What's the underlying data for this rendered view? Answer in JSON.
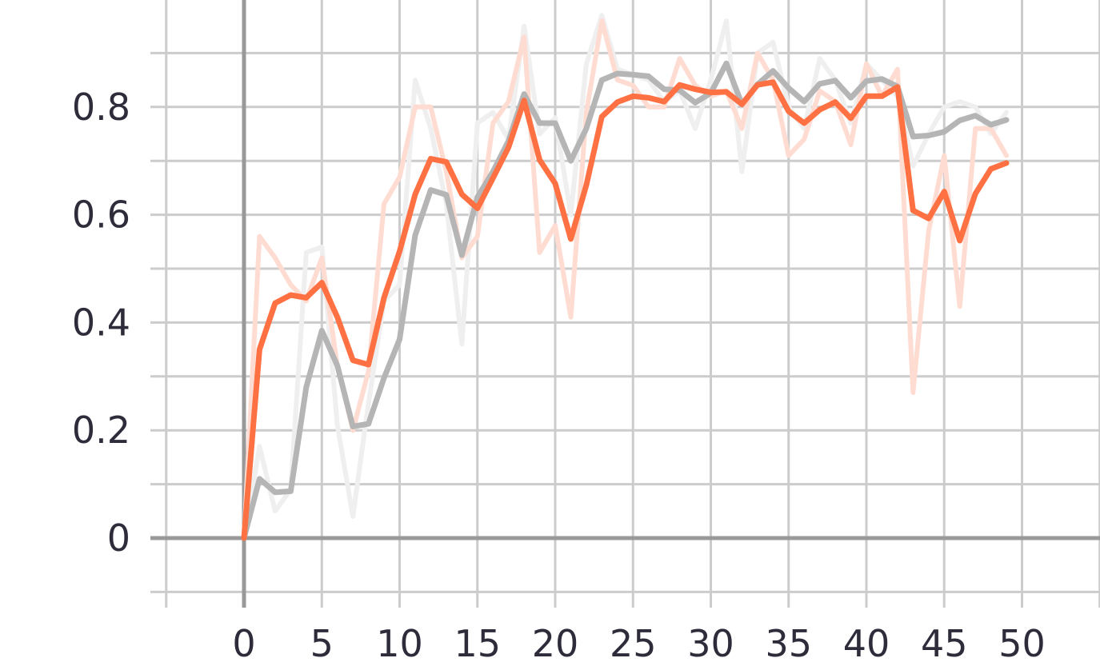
{
  "chart_data": {
    "type": "line",
    "title": "",
    "xlabel": "",
    "ylabel": "",
    "xlim": [
      -5,
      55
    ],
    "ylim": [
      -0.1,
      1.0
    ],
    "x_ticks": [
      0,
      5,
      10,
      15,
      20,
      25,
      30,
      35,
      40,
      45,
      50
    ],
    "x_tick_labels": [
      "0",
      "5",
      "10",
      "15",
      "20",
      "25",
      "30",
      "35",
      "40",
      "45",
      "50"
    ],
    "y_ticks": [
      0,
      0.2,
      0.4,
      0.6,
      0.8
    ],
    "y_tick_labels": [
      "0",
      "0.2",
      "0.4",
      "0.6",
      "0.8"
    ],
    "grid": true,
    "legend": "none",
    "colors": {
      "orange": "#ff7043",
      "orange_raw": "#ffdcd2",
      "gray": "#b5b5b5",
      "gray_raw": "#efefef",
      "grid": "#cccccc",
      "axis": "#999999"
    },
    "x": [
      0,
      1,
      2,
      3,
      4,
      5,
      6,
      7,
      8,
      9,
      10,
      11,
      12,
      13,
      14,
      15,
      16,
      17,
      18,
      19,
      20,
      21,
      22,
      23,
      24,
      25,
      26,
      27,
      28,
      29,
      30,
      31,
      32,
      33,
      34,
      35,
      36,
      37,
      38,
      39,
      40,
      41,
      42,
      43,
      44,
      45,
      46,
      47,
      48,
      49
    ],
    "series": [
      {
        "style": "raw",
        "color_key": "gray_raw",
        "values": [
          0,
          0.17,
          0.05,
          0.09,
          0.53,
          0.54,
          0.21,
          0.04,
          0.25,
          0.44,
          0.47,
          0.85,
          0.76,
          0.62,
          0.36,
          0.77,
          0.79,
          0.74,
          0.95,
          0.75,
          0.78,
          0.6,
          0.88,
          0.97,
          0.87,
          0.86,
          0.85,
          0.81,
          0.83,
          0.76,
          0.85,
          0.96,
          0.68,
          0.9,
          0.92,
          0.8,
          0.76,
          0.89,
          0.85,
          0.77,
          0.88,
          0.85,
          0.82,
          0.69,
          0.75,
          0.8,
          0.81,
          0.8,
          0.75,
          0.79
        ]
      },
      {
        "style": "raw",
        "color_key": "orange_raw",
        "values": [
          0,
          0.56,
          0.52,
          0.47,
          0.44,
          0.52,
          0.32,
          0.2,
          0.31,
          0.62,
          0.67,
          0.8,
          0.8,
          0.68,
          0.52,
          0.56,
          0.77,
          0.81,
          0.93,
          0.53,
          0.58,
          0.41,
          0.79,
          0.96,
          0.85,
          0.84,
          0.8,
          0.8,
          0.89,
          0.84,
          0.82,
          0.83,
          0.76,
          0.9,
          0.85,
          0.71,
          0.74,
          0.83,
          0.81,
          0.73,
          0.88,
          0.82,
          0.87,
          0.27,
          0.57,
          0.71,
          0.43,
          0.76,
          0.76,
          0.71
        ]
      },
      {
        "style": "smoothed",
        "color_key": "gray",
        "values": [
          0,
          0.11,
          0.085,
          0.087,
          0.28,
          0.385,
          0.32,
          0.207,
          0.212,
          0.297,
          0.369,
          0.562,
          0.646,
          0.637,
          0.525,
          0.633,
          0.68,
          0.737,
          0.824,
          0.77,
          0.77,
          0.7,
          0.76,
          0.85,
          0.862,
          0.86,
          0.857,
          0.833,
          0.831,
          0.808,
          0.826,
          0.881,
          0.805,
          0.842,
          0.867,
          0.835,
          0.81,
          0.843,
          0.849,
          0.817,
          0.848,
          0.852,
          0.838,
          0.745,
          0.747,
          0.754,
          0.775,
          0.784,
          0.767,
          0.776
        ]
      },
      {
        "style": "smoothed",
        "color_key": "orange",
        "values": [
          0,
          0.35,
          0.436,
          0.451,
          0.446,
          0.474,
          0.41,
          0.33,
          0.322,
          0.446,
          0.532,
          0.638,
          0.704,
          0.698,
          0.638,
          0.612,
          0.668,
          0.725,
          0.812,
          0.702,
          0.658,
          0.555,
          0.655,
          0.782,
          0.809,
          0.82,
          0.817,
          0.81,
          0.841,
          0.833,
          0.827,
          0.828,
          0.805,
          0.841,
          0.846,
          0.792,
          0.77,
          0.795,
          0.809,
          0.779,
          0.82,
          0.82,
          0.837,
          0.608,
          0.593,
          0.643,
          0.552,
          0.639,
          0.685,
          0.696
        ]
      }
    ]
  }
}
